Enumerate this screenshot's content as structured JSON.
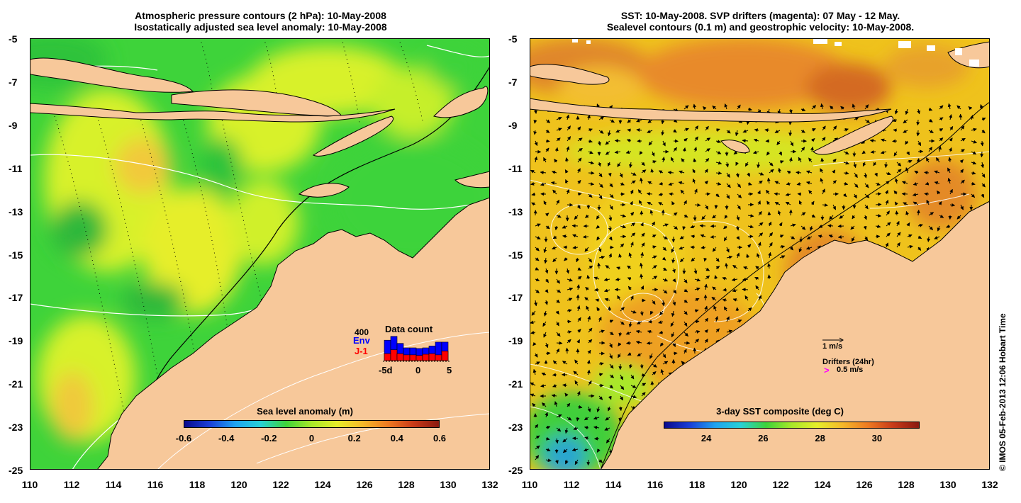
{
  "left_panel": {
    "title_line1": "Atmospheric pressure contours (2 hPa): 10-May-2008",
    "title_line2": "Isostatically adjusted sea level anomaly: 10-May-2008",
    "colorbar": {
      "title": "Sea level anomaly (m)",
      "labels": [
        "-0.6",
        "-0.4",
        "-0.2",
        "0",
        "0.2",
        "0.4",
        "0.6"
      ]
    },
    "data_count": {
      "title": "Data count",
      "max_label": "400",
      "env_label": "Env",
      "ji_label": "J-1",
      "x_labels": [
        "-5d",
        "0",
        "5"
      ],
      "env_values": [
        320,
        380,
        270,
        200,
        200,
        190,
        200,
        230,
        290,
        290
      ],
      "ji_values": [
        110,
        170,
        110,
        90,
        90,
        80,
        100,
        110,
        90,
        150
      ],
      "env_color": "#0000ff",
      "ji_color": "#ff0000"
    }
  },
  "right_panel": {
    "title_line1": "SST: 10-May-2008. SVP drifters (magenta): 07 May - 12 May.",
    "title_line2": "Sealevel contours (0.1 m) and geostrophic velocity: 10-May-2008.",
    "colorbar": {
      "title": "3-day SST composite (deg C)",
      "labels": [
        "24",
        "26",
        "28",
        "30"
      ]
    },
    "scale_arrow_label": "1 m/s",
    "drifters_label": "Drifters (24hr)",
    "drifter_symbol": ">",
    "drifter_speed": "0.5 m/s",
    "drifter_color": "#ff00ff"
  },
  "axes": {
    "y_ticks": [
      "-5",
      "-7",
      "-9",
      "-11",
      "-13",
      "-15",
      "-17",
      "-19",
      "-21",
      "-23",
      "-25"
    ],
    "x_ticks": [
      "110",
      "112",
      "114",
      "116",
      "118",
      "120",
      "122",
      "124",
      "126",
      "128",
      "130",
      "132"
    ]
  },
  "colors": {
    "land": "#f7c89a",
    "sla_green": "#3ed33a",
    "sla_yellow": "#d8f12a",
    "sst_orange": "#efa224",
    "sst_yellow": "#f0c91a"
  },
  "copyright": "© IMOS 05-Feb-2013 12:06 Hobart Time"
}
